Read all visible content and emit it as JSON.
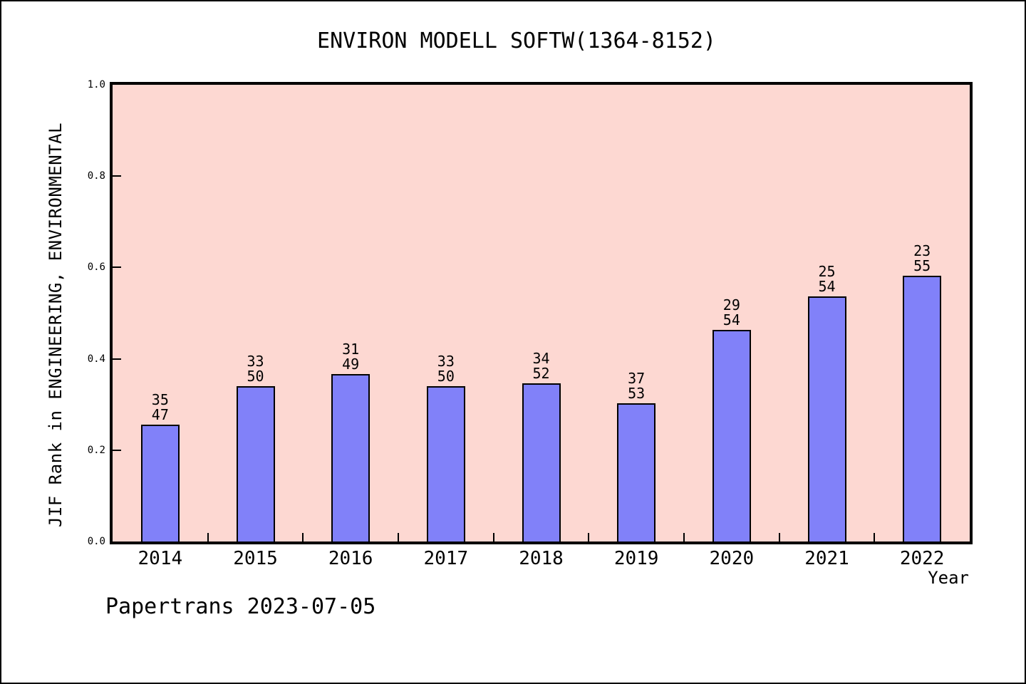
{
  "title": "ENVIRON MODELL SOFTW(1364-8152)",
  "footer": {
    "text": "Papertrans 2023-07-05"
  },
  "chart_data": {
    "type": "bar",
    "title": "ENVIRON MODELL SOFTW(1364-8152)",
    "xlabel": "Year",
    "ylabel": "JIF Rank in ENGINEERING, ENVIRONMENTAL",
    "categories": [
      "2014",
      "2015",
      "2016",
      "2017",
      "2018",
      "2019",
      "2020",
      "2021",
      "2022"
    ],
    "bar_annotations": [
      {
        "rank": "35",
        "total": "47"
      },
      {
        "rank": "33",
        "total": "50"
      },
      {
        "rank": "31",
        "total": "49"
      },
      {
        "rank": "33",
        "total": "50"
      },
      {
        "rank": "34",
        "total": "52"
      },
      {
        "rank": "37",
        "total": "53"
      },
      {
        "rank": "29",
        "total": "54"
      },
      {
        "rank": "25",
        "total": "54"
      },
      {
        "rank": "23",
        "total": "55"
      }
    ],
    "values": [
      0.2553,
      0.34,
      0.3673,
      0.34,
      0.3462,
      0.3019,
      0.463,
      0.537,
      0.5818
    ],
    "ylim": [
      0.0,
      1.0
    ],
    "yticks": [
      "0.0",
      "0.2",
      "0.4",
      "0.6",
      "0.8",
      "1.0"
    ],
    "grid": false,
    "legend": false,
    "colors": {
      "bar_fill": "#8181f9",
      "bar_edge": "#000000",
      "plot_bg": "#fdd8d2",
      "frame": "#000000",
      "text": "#000000"
    }
  }
}
